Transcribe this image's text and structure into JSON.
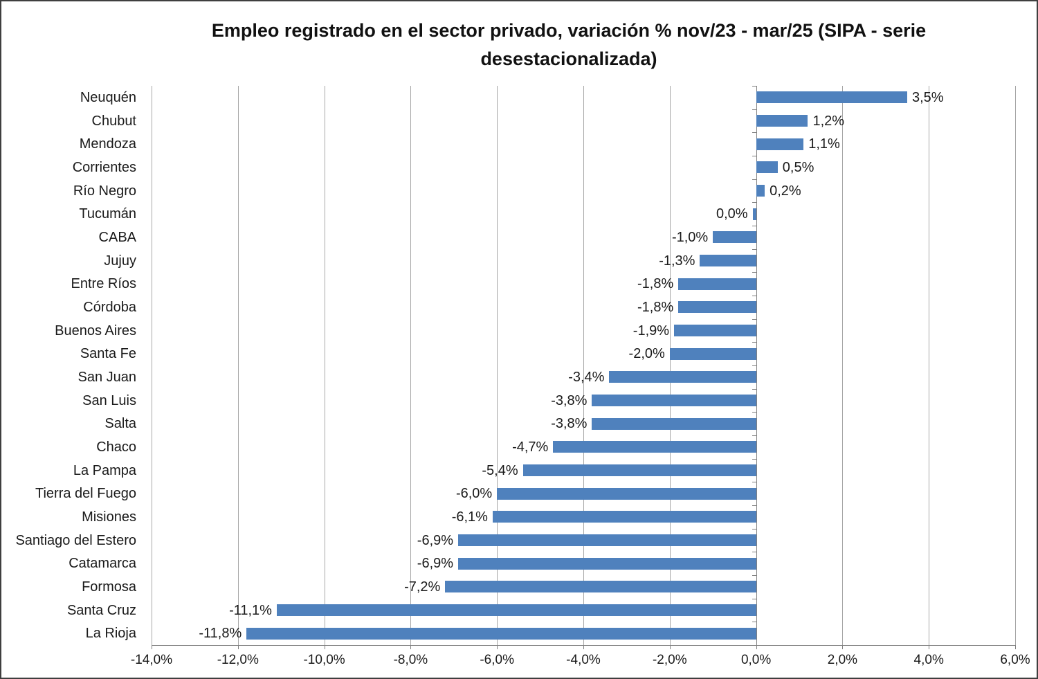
{
  "chart": {
    "title_lines": [
      "Empleo registrado en el sector privado, variación % nov/23 - mar/25 (SIPA - serie",
      "desestacionalizada)"
    ]
  },
  "chart_data": {
    "type": "bar",
    "orientation": "horizontal",
    "title": "Empleo registrado en el sector privado, variación % nov/23 - mar/25 (SIPA - serie desestacionalizada)",
    "xlabel": "",
    "ylabel": "",
    "categories": [
      "Neuquén",
      "Chubut",
      "Mendoza",
      "Corrientes",
      "Río Negro",
      "Tucumán",
      "CABA",
      "Jujuy",
      "Entre Ríos",
      "Córdoba",
      "Buenos Aires",
      "Santa Fe",
      "San Juan",
      "San Luis",
      "Salta",
      "Chaco",
      "La Pampa",
      "Tierra del Fuego",
      "Misiones",
      "Santiago del Estero",
      "Catamarca",
      "Formosa",
      "Santa Cruz",
      "La Rioja"
    ],
    "values": [
      3.5,
      1.2,
      1.1,
      0.5,
      0.2,
      0.0,
      -1.0,
      -1.3,
      -1.8,
      -1.8,
      -1.9,
      -2.0,
      -3.4,
      -3.8,
      -3.8,
      -4.7,
      -5.4,
      -6.0,
      -6.1,
      -6.9,
      -6.9,
      -7.2,
      -11.1,
      -11.8
    ],
    "value_labels": [
      "3,5%",
      "1,2%",
      "1,1%",
      "0,5%",
      "0,2%",
      "0,0%",
      "-1,0%",
      "-1,3%",
      "-1,8%",
      "-1,8%",
      "-1,9%",
      "-2,0%",
      "-3,4%",
      "-3,8%",
      "-3,8%",
      "-4,7%",
      "-5,4%",
      "-6,0%",
      "-6,1%",
      "-6,9%",
      "-6,9%",
      "-7,2%",
      "-11,1%",
      "-11,8%"
    ],
    "xlim": [
      -14,
      6
    ],
    "x_ticks": {
      "values": [
        -14,
        -12,
        -10,
        -8,
        -6,
        -4,
        -2,
        0,
        2,
        4,
        6
      ],
      "labels": [
        "-14,0%",
        "-12,0%",
        "-10,0%",
        "-8,0%",
        "-6,0%",
        "-4,0%",
        "-2,0%",
        "0,0%",
        "2,0%",
        "4,0%",
        "6,0%"
      ]
    },
    "grid": true,
    "legend": false,
    "colors": {
      "bar": "#4F81BD",
      "gridline": "#A6A6A6",
      "axis": "#808080",
      "text": "#1a1a1a"
    }
  }
}
